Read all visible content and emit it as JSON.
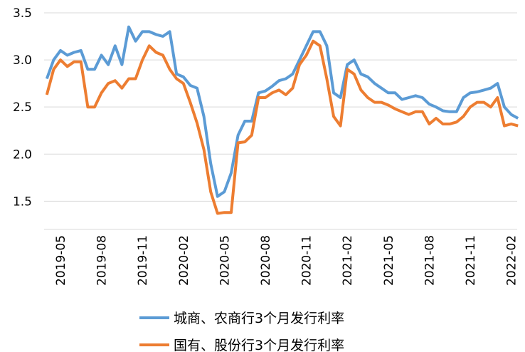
{
  "chart_data": {
    "type": "line",
    "categories": [
      null,
      null,
      "2019-05",
      null,
      null,
      null,
      null,
      null,
      "2019-08",
      null,
      null,
      null,
      null,
      null,
      "2019-11",
      null,
      null,
      null,
      null,
      null,
      "2020-02",
      null,
      null,
      null,
      null,
      null,
      "2020-05",
      null,
      null,
      null,
      null,
      null,
      "2020-08",
      null,
      null,
      null,
      null,
      null,
      "2020-11",
      null,
      null,
      null,
      null,
      null,
      "2021-02",
      null,
      null,
      null,
      null,
      null,
      "2021-05",
      null,
      null,
      null,
      null,
      null,
      "2021-08",
      null,
      null,
      null,
      null,
      null,
      "2021-11",
      null,
      null,
      null,
      null,
      null,
      "2022-02",
      null
    ],
    "series": [
      {
        "name": "城商、农商行3个月发行利率",
        "color": "#5b9bd5",
        "values": [
          2.8,
          3.0,
          3.1,
          3.05,
          3.08,
          3.1,
          2.9,
          2.9,
          3.05,
          2.95,
          3.15,
          2.95,
          3.35,
          3.2,
          3.3,
          3.3,
          3.27,
          3.25,
          3.3,
          2.85,
          2.82,
          2.73,
          2.7,
          2.4,
          1.9,
          1.55,
          1.6,
          1.8,
          2.2,
          2.35,
          2.35,
          2.65,
          2.67,
          2.72,
          2.78,
          2.8,
          2.85,
          3.0,
          3.15,
          3.3,
          3.3,
          3.15,
          2.65,
          2.6,
          2.95,
          3.0,
          2.85,
          2.82,
          2.75,
          2.7,
          2.65,
          2.65,
          2.58,
          2.6,
          2.62,
          2.6,
          2.53,
          2.5,
          2.46,
          2.45,
          2.45,
          2.6,
          2.65,
          2.66,
          2.68,
          2.7,
          2.75,
          2.5,
          2.42,
          2.38
        ]
      },
      {
        "name": "国有、股份行3个月发行利率",
        "color": "#ed7d31",
        "values": [
          2.63,
          2.9,
          3.0,
          2.93,
          2.98,
          2.98,
          2.5,
          2.5,
          2.65,
          2.75,
          2.78,
          2.7,
          2.8,
          2.8,
          3.0,
          3.15,
          3.08,
          3.05,
          2.9,
          2.8,
          2.75,
          2.55,
          2.33,
          2.05,
          1.6,
          1.37,
          1.38,
          1.38,
          2.12,
          2.13,
          2.2,
          2.6,
          2.6,
          2.65,
          2.68,
          2.63,
          2.7,
          2.95,
          3.05,
          3.2,
          3.15,
          2.8,
          2.4,
          2.3,
          2.9,
          2.85,
          2.68,
          2.6,
          2.55,
          2.55,
          2.52,
          2.48,
          2.45,
          2.42,
          2.45,
          2.45,
          2.32,
          2.38,
          2.32,
          2.32,
          2.34,
          2.4,
          2.5,
          2.55,
          2.55,
          2.5,
          2.6,
          2.3,
          2.32,
          2.3
        ]
      }
    ],
    "ylim": [
      1.2,
      3.5
    ],
    "yticks": [
      {
        "value": 1.5,
        "label": "1.5"
      },
      {
        "value": 2,
        "label": "2.0"
      },
      {
        "value": 2.5,
        "label": "2.5"
      },
      {
        "value": 3,
        "label": "3.0"
      },
      {
        "value": 3.5,
        "label": "3.5"
      }
    ],
    "grid": true,
    "legend": "bottom"
  }
}
